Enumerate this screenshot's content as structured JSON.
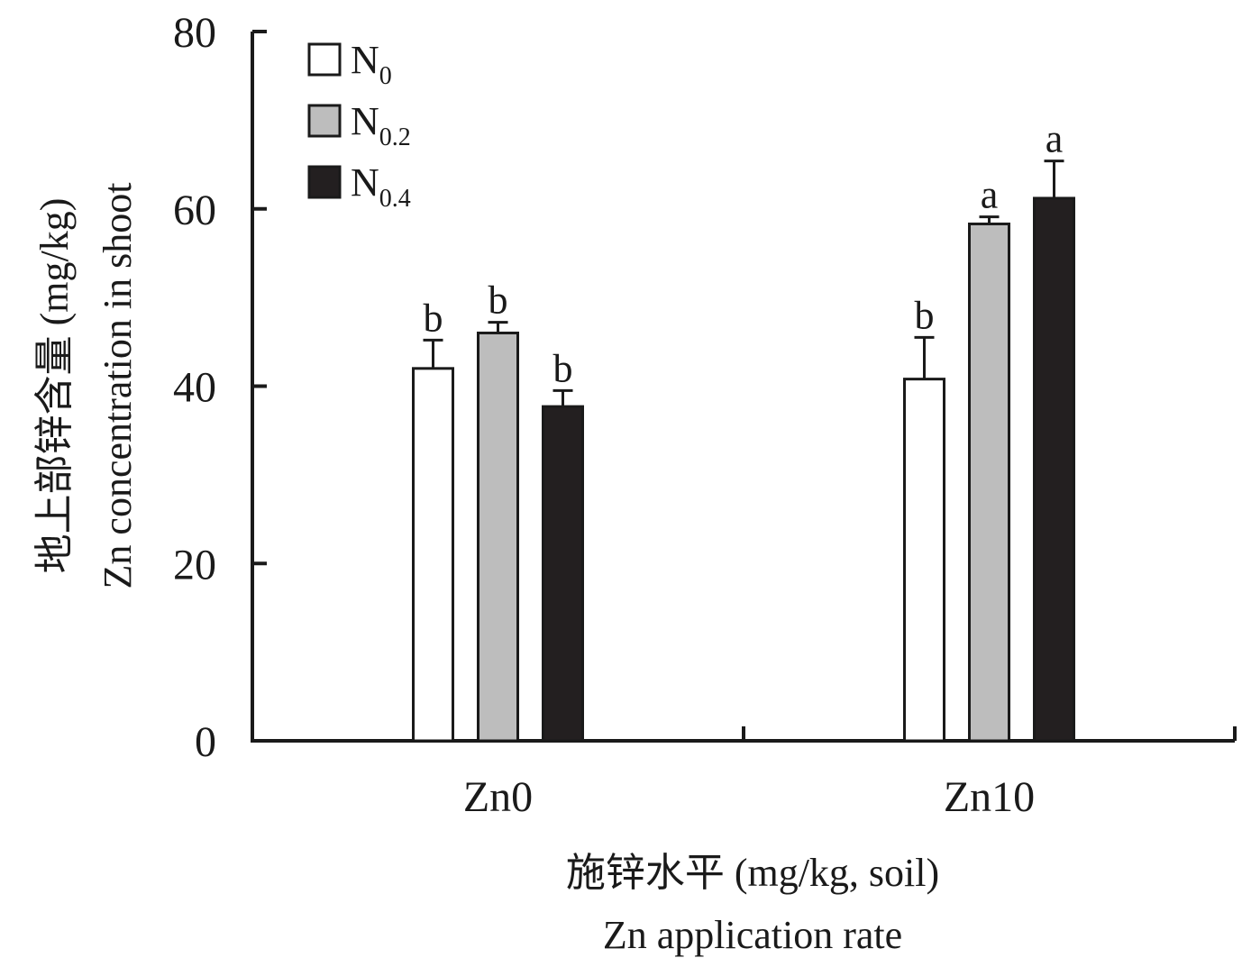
{
  "chart_data": {
    "type": "bar",
    "categories": [
      "Zn0",
      "Zn10"
    ],
    "series": [
      {
        "name": "N",
        "sub": "0",
        "color": "#ffffff",
        "values": [
          42.0,
          40.8
        ],
        "errors": [
          3.2,
          4.7
        ],
        "letters": [
          "b",
          "b"
        ]
      },
      {
        "name": "N",
        "sub": "0.2",
        "color": "#bdbdbd",
        "values": [
          46.0,
          58.3
        ],
        "errors": [
          1.2,
          0.8
        ],
        "letters": [
          "b",
          "a"
        ]
      },
      {
        "name": "N",
        "sub": "0.4",
        "color": "#231f20",
        "values": [
          37.7,
          61.2
        ],
        "errors": [
          1.8,
          4.2
        ],
        "letters": [
          "b",
          "a"
        ]
      }
    ],
    "ylim": [
      0,
      80
    ],
    "yticks": [
      "0",
      "20",
      "40",
      "60",
      "80"
    ],
    "ylabel_cn": "地上部锌含量 (mg/kg)",
    "ylabel_en": "Zn concentration in shoot",
    "xlabel_cn": "施锌水平 (mg/kg, soil)",
    "xlabel_en": "Zn application rate",
    "legend_position": "top-left",
    "grid": false
  }
}
